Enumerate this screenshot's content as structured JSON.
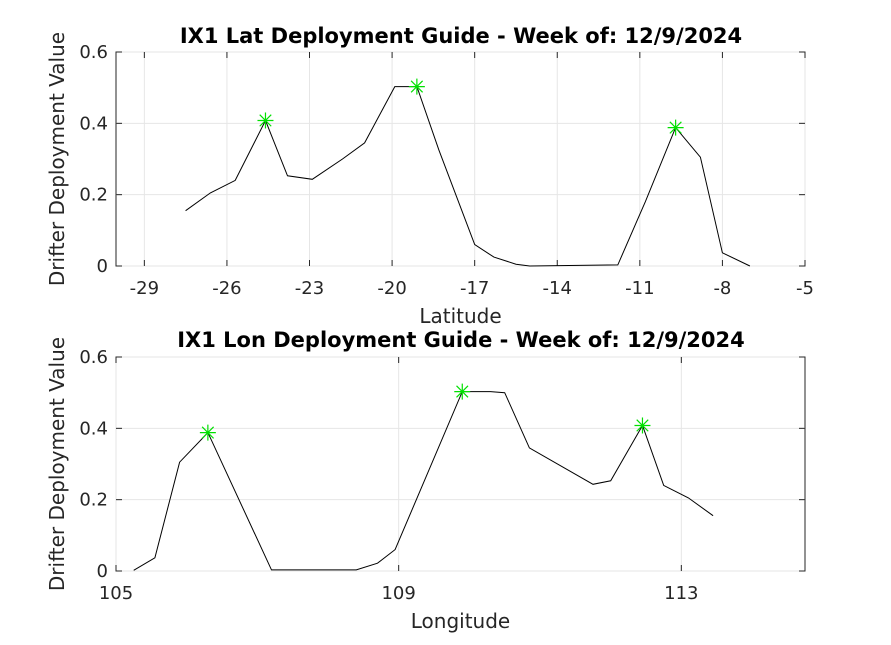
{
  "chart_data": [
    {
      "type": "line",
      "title": "IX1 Lat Deployment Guide - Week of: 12/9/2024",
      "xlabel": "Latitude",
      "ylabel": "Drifter Deployment Value",
      "xlim": [
        -30.03,
        -5
      ],
      "ylim": [
        0,
        0.6
      ],
      "xticks": [
        -29,
        -26,
        -23,
        -20,
        -17,
        -14,
        -11,
        -8,
        -5
      ],
      "xtick_labels": [
        "-29",
        "-26",
        "-23",
        "-20",
        "-17",
        "-14",
        "-11",
        "-8",
        "-5"
      ],
      "yticks": [
        0,
        0.2,
        0.4,
        0.6
      ],
      "ytick_labels": [
        "0",
        "0.2",
        "0.4",
        "0.6"
      ],
      "grid": true,
      "line_color": "#000000",
      "marker_color": "#00e000",
      "series": [
        {
          "x": [
            -27.5,
            -26.6,
            -25.7,
            -24.6,
            -23.8,
            -22.9,
            -21.8,
            -21.0,
            -19.9,
            -19.1,
            -18.3,
            -17.0,
            -16.3,
            -15.5,
            -15.0,
            -11.8,
            -10.8,
            -9.7,
            -8.8,
            -8.0,
            -7.0
          ],
          "y": [
            0.155,
            0.205,
            0.24,
            0.408,
            0.253,
            0.243,
            0.3,
            0.345,
            0.503,
            0.503,
            0.325,
            0.06,
            0.025,
            0.005,
            0.0,
            0.003,
            0.18,
            0.388,
            0.305,
            0.037,
            0.0
          ]
        }
      ],
      "peaks": [
        {
          "x": -24.6,
          "y": 0.408
        },
        {
          "x": -19.1,
          "y": 0.503
        },
        {
          "x": -9.7,
          "y": 0.388
        }
      ]
    },
    {
      "type": "line",
      "title": "IX1 Lon Deployment Guide - Week of: 12/9/2024",
      "xlabel": "Longitude",
      "ylabel": "Drifter Deployment Value",
      "xlim": [
        105,
        114.75
      ],
      "ylim": [
        0,
        0.6
      ],
      "xticks": [
        105,
        109,
        113
      ],
      "xtick_labels": [
        "105",
        "109",
        "113"
      ],
      "yticks": [
        0,
        0.2,
        0.4,
        0.6
      ],
      "ytick_labels": [
        "0",
        "0.2",
        "0.4",
        "0.6"
      ],
      "grid": true,
      "line_color": "#000000",
      "marker_color": "#00e000",
      "series": [
        {
          "x": [
            105.25,
            105.55,
            105.9,
            106.3,
            107.2,
            108.4,
            108.7,
            108.95,
            109.9,
            110.3,
            110.5,
            110.85,
            111.75,
            112.0,
            112.45,
            112.75,
            113.1,
            113.45
          ],
          "y": [
            0.002,
            0.037,
            0.305,
            0.388,
            0.003,
            0.003,
            0.022,
            0.06,
            0.503,
            0.503,
            0.5,
            0.345,
            0.243,
            0.253,
            0.408,
            0.24,
            0.205,
            0.155
          ]
        }
      ],
      "peaks": [
        {
          "x": 106.3,
          "y": 0.388
        },
        {
          "x": 109.9,
          "y": 0.503
        },
        {
          "x": 112.45,
          "y": 0.408
        }
      ]
    }
  ]
}
